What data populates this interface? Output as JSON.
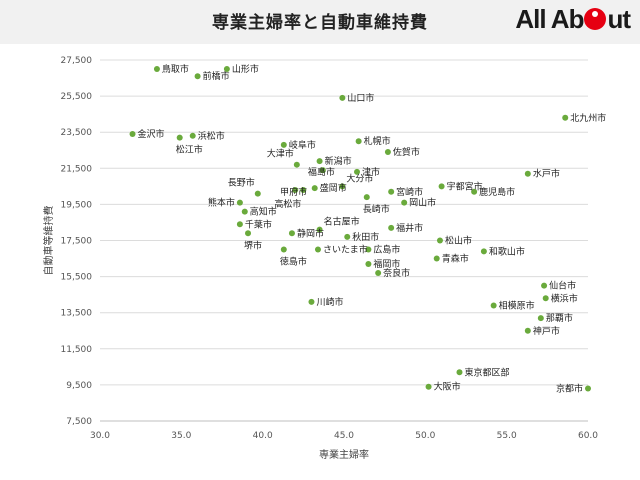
{
  "header": {
    "title": "専業主婦率と自動車維持費",
    "logo_text": "All About"
  },
  "chart_data": {
    "type": "scatter",
    "title": "専業主婦率と自動車維持費",
    "xlabel": "専業主婦率",
    "ylabel": "自動車等維持費",
    "xlim": [
      30.0,
      60.0
    ],
    "ylim": [
      7500,
      27500
    ],
    "xticks": [
      30.0,
      35.0,
      40.0,
      45.0,
      50.0,
      55.0,
      60.0
    ],
    "xtick_labels": [
      "30.0",
      "35.0",
      "40.0",
      "45.0",
      "50.0",
      "55.0",
      "60.0"
    ],
    "yticks": [
      7500,
      9500,
      11500,
      13500,
      15500,
      17500,
      19500,
      21500,
      23500,
      25500,
      27500
    ],
    "ytick_labels": [
      "7,500",
      "9,500",
      "11,500",
      "13,500",
      "15,500",
      "17,500",
      "19,500",
      "21,500",
      "23,500",
      "25,500",
      "27,500"
    ],
    "grid": "horizontal",
    "marker_color": "#6aaa3c",
    "points": [
      {
        "label": "鳥取市",
        "x": 33.5,
        "y": 27000,
        "pos": "r"
      },
      {
        "label": "前橋市",
        "x": 36.0,
        "y": 26600,
        "pos": "r"
      },
      {
        "label": "山形市",
        "x": 37.8,
        "y": 27000,
        "pos": "r"
      },
      {
        "label": "山口市",
        "x": 44.9,
        "y": 25400,
        "pos": "r"
      },
      {
        "label": "北九州市",
        "x": 58.6,
        "y": 24300,
        "pos": "r"
      },
      {
        "label": "金沢市",
        "x": 32.0,
        "y": 23400,
        "pos": "r"
      },
      {
        "label": "浜松市",
        "x": 35.7,
        "y": 23300,
        "pos": "r"
      },
      {
        "label": "松江市",
        "x": 34.9,
        "y": 23200,
        "pos": "b"
      },
      {
        "label": "岐阜市",
        "x": 41.3,
        "y": 22800,
        "pos": "r"
      },
      {
        "label": "札幌市",
        "x": 45.9,
        "y": 23000,
        "pos": "r"
      },
      {
        "label": "佐賀市",
        "x": 47.7,
        "y": 22400,
        "pos": "r"
      },
      {
        "label": "新潟市",
        "x": 43.5,
        "y": 21900,
        "pos": "r"
      },
      {
        "label": "大津市",
        "x": 42.1,
        "y": 21700,
        "pos": "tl"
      },
      {
        "label": "福島市",
        "x": 43.7,
        "y": 21400,
        "pos": "bl"
      },
      {
        "label": "津市",
        "x": 45.8,
        "y": 21300,
        "pos": "r"
      },
      {
        "label": "水戸市",
        "x": 56.3,
        "y": 21200,
        "pos": "r"
      },
      {
        "label": "大分市",
        "x": 44.9,
        "y": 20500,
        "pos": "tr"
      },
      {
        "label": "宇都宮市",
        "x": 51.0,
        "y": 20500,
        "pos": "r"
      },
      {
        "label": "盛岡市",
        "x": 43.2,
        "y": 20400,
        "pos": "r"
      },
      {
        "label": "宮崎市",
        "x": 47.9,
        "y": 20200,
        "pos": "r"
      },
      {
        "label": "鹿児島市",
        "x": 53.0,
        "y": 20200,
        "pos": "r"
      },
      {
        "label": "長野市",
        "x": 39.7,
        "y": 20100,
        "pos": "tl"
      },
      {
        "label": "甲府市",
        "x": 42.0,
        "y": 20300,
        "pos": "bl"
      },
      {
        "label": "高松市",
        "x": 42.5,
        "y": 20300,
        "pos": "bl2"
      },
      {
        "label": "長崎市",
        "x": 46.4,
        "y": 19900,
        "pos": "b"
      },
      {
        "label": "岡山市",
        "x": 48.7,
        "y": 19600,
        "pos": "r"
      },
      {
        "label": "熊本市",
        "x": 38.6,
        "y": 19600,
        "pos": "l"
      },
      {
        "label": "高知市",
        "x": 38.9,
        "y": 19100,
        "pos": "r"
      },
      {
        "label": "千葉市",
        "x": 38.6,
        "y": 18400,
        "pos": "r"
      },
      {
        "label": "名古屋市",
        "x": 43.5,
        "y": 18100,
        "pos": "tr"
      },
      {
        "label": "福井市",
        "x": 47.9,
        "y": 18200,
        "pos": "r"
      },
      {
        "label": "静岡市",
        "x": 41.8,
        "y": 17900,
        "pos": "r"
      },
      {
        "label": "秋田市",
        "x": 45.2,
        "y": 17700,
        "pos": "r"
      },
      {
        "label": "松山市",
        "x": 50.9,
        "y": 17500,
        "pos": "r"
      },
      {
        "label": "堺市",
        "x": 39.1,
        "y": 17900,
        "pos": "b"
      },
      {
        "label": "さいたま市",
        "x": 43.4,
        "y": 17000,
        "pos": "r"
      },
      {
        "label": "広島市",
        "x": 46.5,
        "y": 17000,
        "pos": "r"
      },
      {
        "label": "和歌山市",
        "x": 53.6,
        "y": 16900,
        "pos": "r"
      },
      {
        "label": "徳島市",
        "x": 41.3,
        "y": 17000,
        "pos": "b"
      },
      {
        "label": "青森市",
        "x": 50.7,
        "y": 16500,
        "pos": "r"
      },
      {
        "label": "福岡市",
        "x": 46.5,
        "y": 16200,
        "pos": "r"
      },
      {
        "label": "奈良市",
        "x": 47.1,
        "y": 15700,
        "pos": "r"
      },
      {
        "label": "仙台市",
        "x": 57.3,
        "y": 15000,
        "pos": "r"
      },
      {
        "label": "横浜市",
        "x": 57.4,
        "y": 14300,
        "pos": "r"
      },
      {
        "label": "川崎市",
        "x": 43.0,
        "y": 14100,
        "pos": "r"
      },
      {
        "label": "相模原市",
        "x": 54.2,
        "y": 13900,
        "pos": "r"
      },
      {
        "label": "那覇市",
        "x": 57.1,
        "y": 13200,
        "pos": "r"
      },
      {
        "label": "神戸市",
        "x": 56.3,
        "y": 12500,
        "pos": "r"
      },
      {
        "label": "東京都区部",
        "x": 52.1,
        "y": 10200,
        "pos": "r"
      },
      {
        "label": "大阪市",
        "x": 50.2,
        "y": 9400,
        "pos": "r"
      },
      {
        "label": "京都市",
        "x": 60.0,
        "y": 9300,
        "pos": "l"
      }
    ]
  }
}
